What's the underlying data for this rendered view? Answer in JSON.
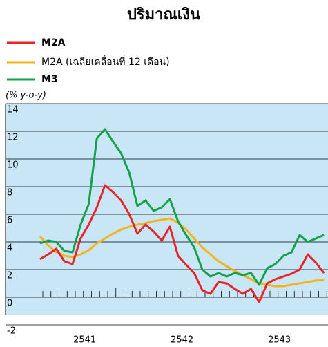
{
  "chart_data": {
    "type": "line",
    "title": "ปริมาณเงิน",
    "y_label": "(% y-o-y)",
    "categories": [
      null,
      null,
      null,
      null,
      null,
      null,
      "2541",
      null,
      null,
      null,
      null,
      null,
      null,
      null,
      null,
      null,
      null,
      null,
      "2542",
      null,
      null,
      null,
      null,
      null,
      null,
      null,
      null,
      null,
      null,
      null,
      "2543",
      null,
      null,
      null,
      null,
      null
    ],
    "series": [
      {
        "name": "M2A",
        "color": "#e8242a",
        "values": [
          2.75,
          3.1,
          3.5,
          2.6,
          2.4,
          4.25,
          5.25,
          6.5,
          8.1,
          7.6,
          7.0,
          6.0,
          4.6,
          5.25,
          4.75,
          4.1,
          5.1,
          3.0,
          2.35,
          1.75,
          0.5,
          0.25,
          1.1,
          1.0,
          0.6,
          0.25,
          0.6,
          -0.35,
          1.0,
          1.3,
          1.5,
          1.7,
          2.0,
          3.1,
          2.5,
          1.75
        ]
      },
      {
        "name": "M2A (เฉลี่ยเคลื่อนที่ 12 เดือน)",
        "color": "#f5b21f",
        "values": [
          4.4,
          3.75,
          3.25,
          3.0,
          2.9,
          3.1,
          3.4,
          3.9,
          4.25,
          4.6,
          4.9,
          5.1,
          5.25,
          5.35,
          5.5,
          5.6,
          5.7,
          5.4,
          4.9,
          4.25,
          3.6,
          3.1,
          2.6,
          2.25,
          1.9,
          1.6,
          1.3,
          1.0,
          0.9,
          0.8,
          0.8,
          0.9,
          1.0,
          1.1,
          1.2,
          1.25
        ]
      },
      {
        "name": "M3",
        "color": "#16a04a",
        "values": [
          3.9,
          4.1,
          4.0,
          3.35,
          3.25,
          5.25,
          6.75,
          11.5,
          12.15,
          11.25,
          10.4,
          9.0,
          6.6,
          7.0,
          6.25,
          6.5,
          7.1,
          5.5,
          4.5,
          3.6,
          2.0,
          1.5,
          1.75,
          1.5,
          1.75,
          1.6,
          1.75,
          0.9,
          2.1,
          2.4,
          3.0,
          3.25,
          4.5,
          4.0,
          4.25,
          4.5
        ]
      }
    ],
    "ylim": [
      -2,
      14
    ],
    "yticks": [
      -2,
      0,
      2,
      4,
      6,
      8,
      10,
      12,
      14
    ],
    "grid": true,
    "background": "#c8e6f5"
  }
}
